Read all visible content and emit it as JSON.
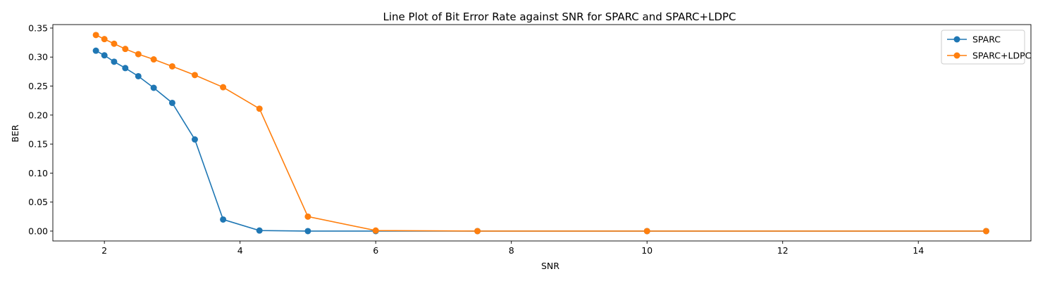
{
  "chart_data": {
    "type": "line",
    "title": "Line Plot of Bit Error Rate against SNR for SPARC and SPARC+LDPC",
    "xlabel": "SNR",
    "ylabel": "BER",
    "xlim": [
      1.24,
      15.66
    ],
    "ylim": [
      -0.017,
      0.356
    ],
    "xticks": [
      2,
      4,
      6,
      8,
      10,
      12,
      14
    ],
    "yticks": [
      0.0,
      0.05,
      0.1,
      0.15,
      0.2,
      0.25,
      0.3,
      0.35
    ],
    "ytick_labels": [
      "0.00",
      "0.05",
      "0.10",
      "0.15",
      "0.20",
      "0.25",
      "0.30",
      "0.35"
    ],
    "grid": false,
    "legend_position": "top-right",
    "series": [
      {
        "name": "SPARC",
        "color": "#1f77b4",
        "marker": "circle",
        "x": [
          1.875,
          2.0,
          2.143,
          2.308,
          2.5,
          2.727,
          3.0,
          3.333,
          3.75,
          4.286,
          5.0,
          6.0,
          7.5,
          10.0,
          15.0
        ],
        "y": [
          0.311,
          0.303,
          0.292,
          0.281,
          0.267,
          0.247,
          0.221,
          0.158,
          0.02,
          0.001,
          0.0,
          0.0,
          0.0,
          0.0,
          0.0
        ]
      },
      {
        "name": "SPARC+LDPC",
        "color": "#ff7f0e",
        "marker": "circle",
        "x": [
          1.875,
          2.0,
          2.143,
          2.308,
          2.5,
          2.727,
          3.0,
          3.333,
          3.75,
          4.286,
          5.0,
          6.0,
          7.5,
          10.0,
          15.0
        ],
        "y": [
          0.338,
          0.331,
          0.323,
          0.314,
          0.305,
          0.296,
          0.284,
          0.269,
          0.248,
          0.211,
          0.025,
          0.001,
          0.0,
          0.0,
          0.0
        ]
      }
    ]
  }
}
